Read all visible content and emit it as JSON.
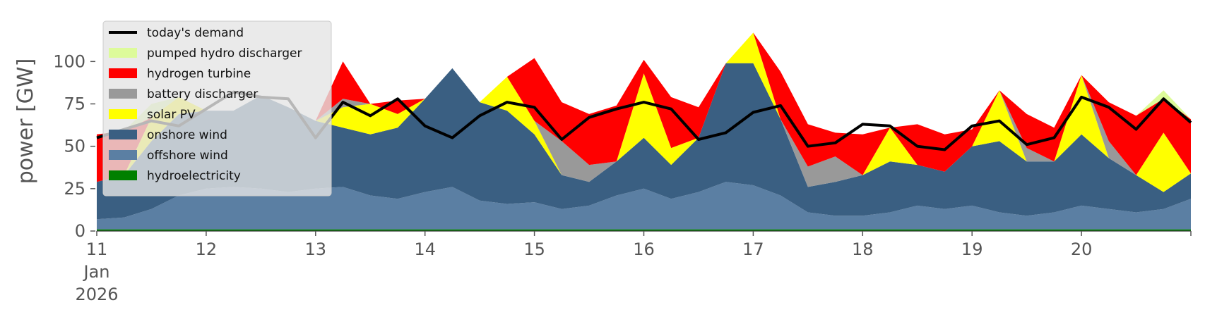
{
  "chart_data": {
    "type": "area",
    "ylabel": "power [GW]",
    "ylim": [
      0,
      118
    ],
    "yticks": [
      0,
      25,
      50,
      75,
      100
    ],
    "x_start": "2026-01-11",
    "x_end": "2026-01-21",
    "xtick_labels": [
      "11",
      "12",
      "13",
      "14",
      "15",
      "16",
      "17",
      "18",
      "19",
      "20"
    ],
    "xtick_sub": [
      "Jan",
      "2026"
    ],
    "grid": false,
    "legend_position": "top-left",
    "series": [
      {
        "name": "hydroelectricity",
        "color": "#008000",
        "values": [
          1,
          1,
          1,
          1,
          1,
          1,
          1,
          1,
          1,
          1,
          1,
          1,
          1,
          1,
          1,
          1,
          1,
          1,
          1,
          1,
          1,
          1,
          1,
          1,
          1,
          1,
          1,
          1,
          1,
          1,
          1,
          1,
          1,
          1,
          1,
          1,
          1,
          1,
          1,
          1,
          1
        ]
      },
      {
        "name": "offshore wind",
        "color": "#5b7fa3",
        "values": [
          6,
          7,
          12,
          20,
          24,
          25,
          24,
          22,
          24,
          25,
          20,
          18,
          22,
          25,
          17,
          15,
          16,
          12,
          14,
          20,
          24,
          18,
          22,
          28,
          26,
          20,
          10,
          8,
          8,
          10,
          14,
          12,
          14,
          10,
          8,
          10,
          14,
          12,
          10,
          12,
          18
        ]
      },
      {
        "name": "onshore wind",
        "color": "#3a5f82",
        "values": [
          22,
          25,
          40,
          48,
          46,
          45,
          55,
          50,
          40,
          35,
          36,
          42,
          55,
          70,
          58,
          55,
          40,
          20,
          14,
          20,
          30,
          20,
          32,
          70,
          72,
          45,
          15,
          20,
          24,
          30,
          24,
          22,
          35,
          42,
          32,
          30,
          42,
          30,
          22,
          10,
          15
        ]
      },
      {
        "name": "solar PV",
        "color": "#ffff00",
        "values": [
          0,
          0,
          14,
          10,
          0,
          0,
          0,
          0,
          0,
          12,
          18,
          8,
          0,
          0,
          0,
          20,
          8,
          0,
          0,
          0,
          38,
          10,
          0,
          0,
          18,
          0,
          0,
          0,
          0,
          20,
          0,
          0,
          0,
          30,
          0,
          0,
          35,
          0,
          0,
          35,
          0
        ]
      },
      {
        "name": "battery discharger",
        "color": "#999999",
        "values": [
          0,
          0,
          0,
          0,
          0,
          0,
          0,
          0,
          0,
          5,
          0,
          0,
          0,
          0,
          0,
          0,
          0,
          20,
          10,
          0,
          0,
          0,
          0,
          0,
          0,
          0,
          12,
          15,
          0,
          0,
          0,
          0,
          0,
          0,
          8,
          0,
          0,
          10,
          0,
          0,
          0
        ]
      },
      {
        "name": "hydrogen turbine",
        "color": "#ff0000",
        "values": [
          28,
          26,
          0,
          0,
          0,
          0,
          0,
          0,
          0,
          22,
          0,
          8,
          0,
          0,
          0,
          0,
          37,
          23,
          30,
          33,
          8,
          30,
          18,
          0,
          0,
          28,
          25,
          14,
          24,
          0,
          24,
          22,
          10,
          0,
          20,
          20,
          0,
          23,
          35,
          20,
          32
        ]
      },
      {
        "name": "pumped hydro discharger",
        "color": "#ddfb9a",
        "values": [
          0,
          0,
          8,
          0,
          0,
          0,
          0,
          0,
          0,
          0,
          0,
          0,
          0,
          0,
          0,
          0,
          0,
          0,
          0,
          0,
          0,
          0,
          0,
          0,
          0,
          0,
          0,
          0,
          0,
          0,
          0,
          0,
          0,
          0,
          0,
          0,
          0,
          0,
          0,
          5,
          0
        ]
      }
    ],
    "demand": {
      "name": "today's demand",
      "color": "#000000",
      "values": [
        55,
        60,
        65,
        62,
        72,
        82,
        79,
        78,
        55,
        76,
        68,
        78,
        62,
        55,
        68,
        76,
        73,
        54,
        67,
        72,
        76,
        72,
        54,
        58,
        70,
        74,
        50,
        52,
        63,
        62,
        50,
        48,
        62,
        65,
        51,
        55,
        79,
        73,
        60,
        78,
        64
      ]
    }
  },
  "legend": [
    {
      "label": "today's demand",
      "kind": "line",
      "color": "#000000"
    },
    {
      "label": "pumped hydro discharger",
      "kind": "patch",
      "color": "#ddfb9a"
    },
    {
      "label": "hydrogen turbine",
      "kind": "patch",
      "color": "#ff0000"
    },
    {
      "label": "battery discharger",
      "kind": "patch",
      "color": "#999999"
    },
    {
      "label": "solar PV",
      "kind": "patch",
      "color": "#ffff00"
    },
    {
      "label": "onshore wind",
      "kind": "patch",
      "color": "#3a5f82"
    },
    {
      "label": "offshore wind",
      "kind": "patch",
      "color": "#5b7fa3"
    },
    {
      "label": "hydroelectricity",
      "kind": "patch",
      "color": "#008000"
    }
  ]
}
